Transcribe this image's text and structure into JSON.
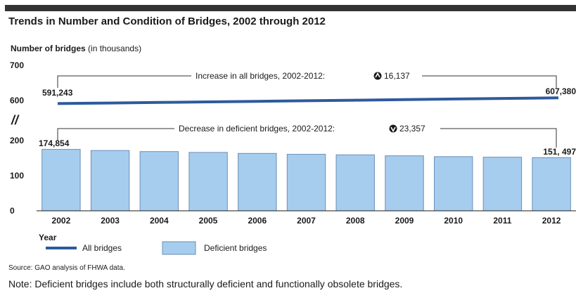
{
  "title": "Trends in Number and Condition of Bridges, 2002 through 2012",
  "ylabel_main": "Number of bridges",
  "ylabel_unit": "(in thousands)",
  "y_ticks": [
    "700",
    "600",
    "200",
    "100",
    "0"
  ],
  "axis_break_symbol": "//",
  "xlabel": "Year",
  "legend": {
    "line_label": "All bridges",
    "bar_label": "Deficient bridges"
  },
  "source": "Source: GAO analysis of FHWA data.",
  "note": "Note: Deficient bridges include both structurally deficient and functionally obsolete bridges.",
  "colors": {
    "line": "#2e5a9c",
    "bar_fill": "#a6cdee",
    "bar_stroke": "#6a8fb6"
  },
  "chart_data": {
    "type": "bar",
    "categories": [
      "2002",
      "2003",
      "2004",
      "2005",
      "2006",
      "2007",
      "2008",
      "2009",
      "2010",
      "2011",
      "2012"
    ],
    "series": [
      {
        "name": "Deficient bridges",
        "type": "bar",
        "values": [
          174.854,
          171.6,
          168.7,
          166.1,
          163.4,
          160.9,
          159.2,
          156.6,
          154.1,
          152.7,
          151.497
        ]
      },
      {
        "name": "All bridges",
        "type": "line",
        "values": [
          591.243,
          592.8,
          594.4,
          596.0,
          597.6,
          599.2,
          600.8,
          602.5,
          604.1,
          605.7,
          607.38
        ]
      }
    ],
    "y_axis_break": [
      200,
      600
    ],
    "ylim": [
      0,
      700
    ],
    "data_labels": {
      "all_start": "591,243",
      "all_end": "607,380",
      "def_start": "174,854",
      "def_end": "151, 497"
    },
    "annotations": {
      "all_prefix": "Increase in all bridges, 2002-2012:",
      "all_value": "16,137",
      "def_prefix": "Decrease in deficient bridges, 2002-2012:",
      "def_value": "23,357"
    }
  }
}
